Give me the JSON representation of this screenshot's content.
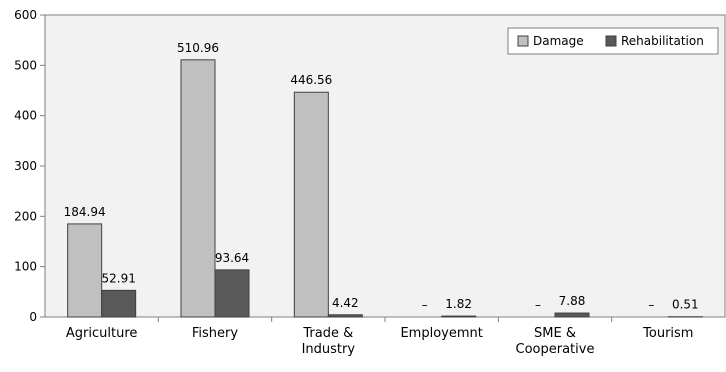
{
  "chart_data": {
    "type": "bar",
    "categories": [
      [
        "Agriculture"
      ],
      [
        "Fishery"
      ],
      [
        "Trade &",
        "Industry"
      ],
      [
        "Employemnt"
      ],
      [
        "SME &",
        "Cooperative"
      ],
      [
        "Tourism"
      ]
    ],
    "series": [
      {
        "name": "Damage",
        "values": [
          184.94,
          510.96,
          446.56,
          0,
          0,
          0
        ],
        "labels": [
          "184.94",
          "510.96",
          "446.56",
          "–",
          "–",
          "–"
        ],
        "color": "#c0c0c0"
      },
      {
        "name": "Rehabilitation",
        "values": [
          52.91,
          93.64,
          4.42,
          1.82,
          7.88,
          0.51
        ],
        "labels": [
          "52.91",
          "93.64",
          "4.42",
          "1.82",
          "7.88",
          "0.51"
        ],
        "color": "#595959"
      }
    ],
    "y_ticks": [
      "0",
      "100",
      "200",
      "300",
      "400",
      "500",
      "600"
    ],
    "ylim": [
      0,
      600
    ],
    "grid": false,
    "legend_position": "top-right",
    "colors": {
      "plot_background": "#f2f2f2",
      "border": "#808080",
      "bar_stroke": "#404040"
    }
  }
}
